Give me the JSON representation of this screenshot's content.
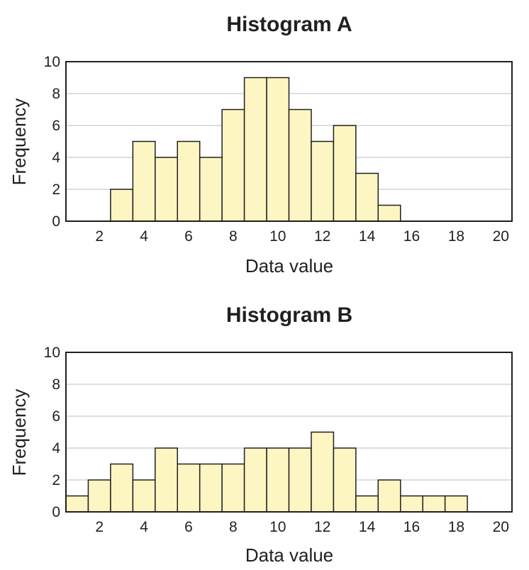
{
  "chart_data": [
    {
      "type": "bar",
      "title": "Histogram A",
      "xlabel": "Data value",
      "ylabel": "Frequency",
      "ylim": [
        0,
        10
      ],
      "xlim": [
        0.5,
        20.5
      ],
      "yticks": [
        0,
        2,
        4,
        6,
        8,
        10
      ],
      "xticks": [
        2,
        4,
        6,
        8,
        10,
        12,
        14,
        16,
        18,
        20
      ],
      "grid": true,
      "x": [
        3,
        4,
        5,
        6,
        7,
        8,
        9,
        10,
        11,
        12,
        13,
        14,
        15
      ],
      "values": [
        2,
        5,
        4,
        5,
        4,
        7,
        9,
        9,
        7,
        5,
        6,
        3,
        1
      ]
    },
    {
      "type": "bar",
      "title": "Histogram B",
      "xlabel": "Data value",
      "ylabel": "Frequency",
      "ylim": [
        0,
        10
      ],
      "xlim": [
        0.5,
        20.5
      ],
      "yticks": [
        0,
        2,
        4,
        6,
        8,
        10
      ],
      "xticks": [
        2,
        4,
        6,
        8,
        10,
        12,
        14,
        16,
        18,
        20
      ],
      "grid": true,
      "x": [
        1,
        2,
        3,
        4,
        5,
        6,
        7,
        8,
        9,
        10,
        11,
        12,
        13,
        14,
        15,
        16,
        17,
        18
      ],
      "values": [
        1,
        2,
        3,
        2,
        4,
        3,
        3,
        3,
        4,
        4,
        4,
        5,
        4,
        1,
        2,
        1,
        1,
        1
      ]
    }
  ]
}
